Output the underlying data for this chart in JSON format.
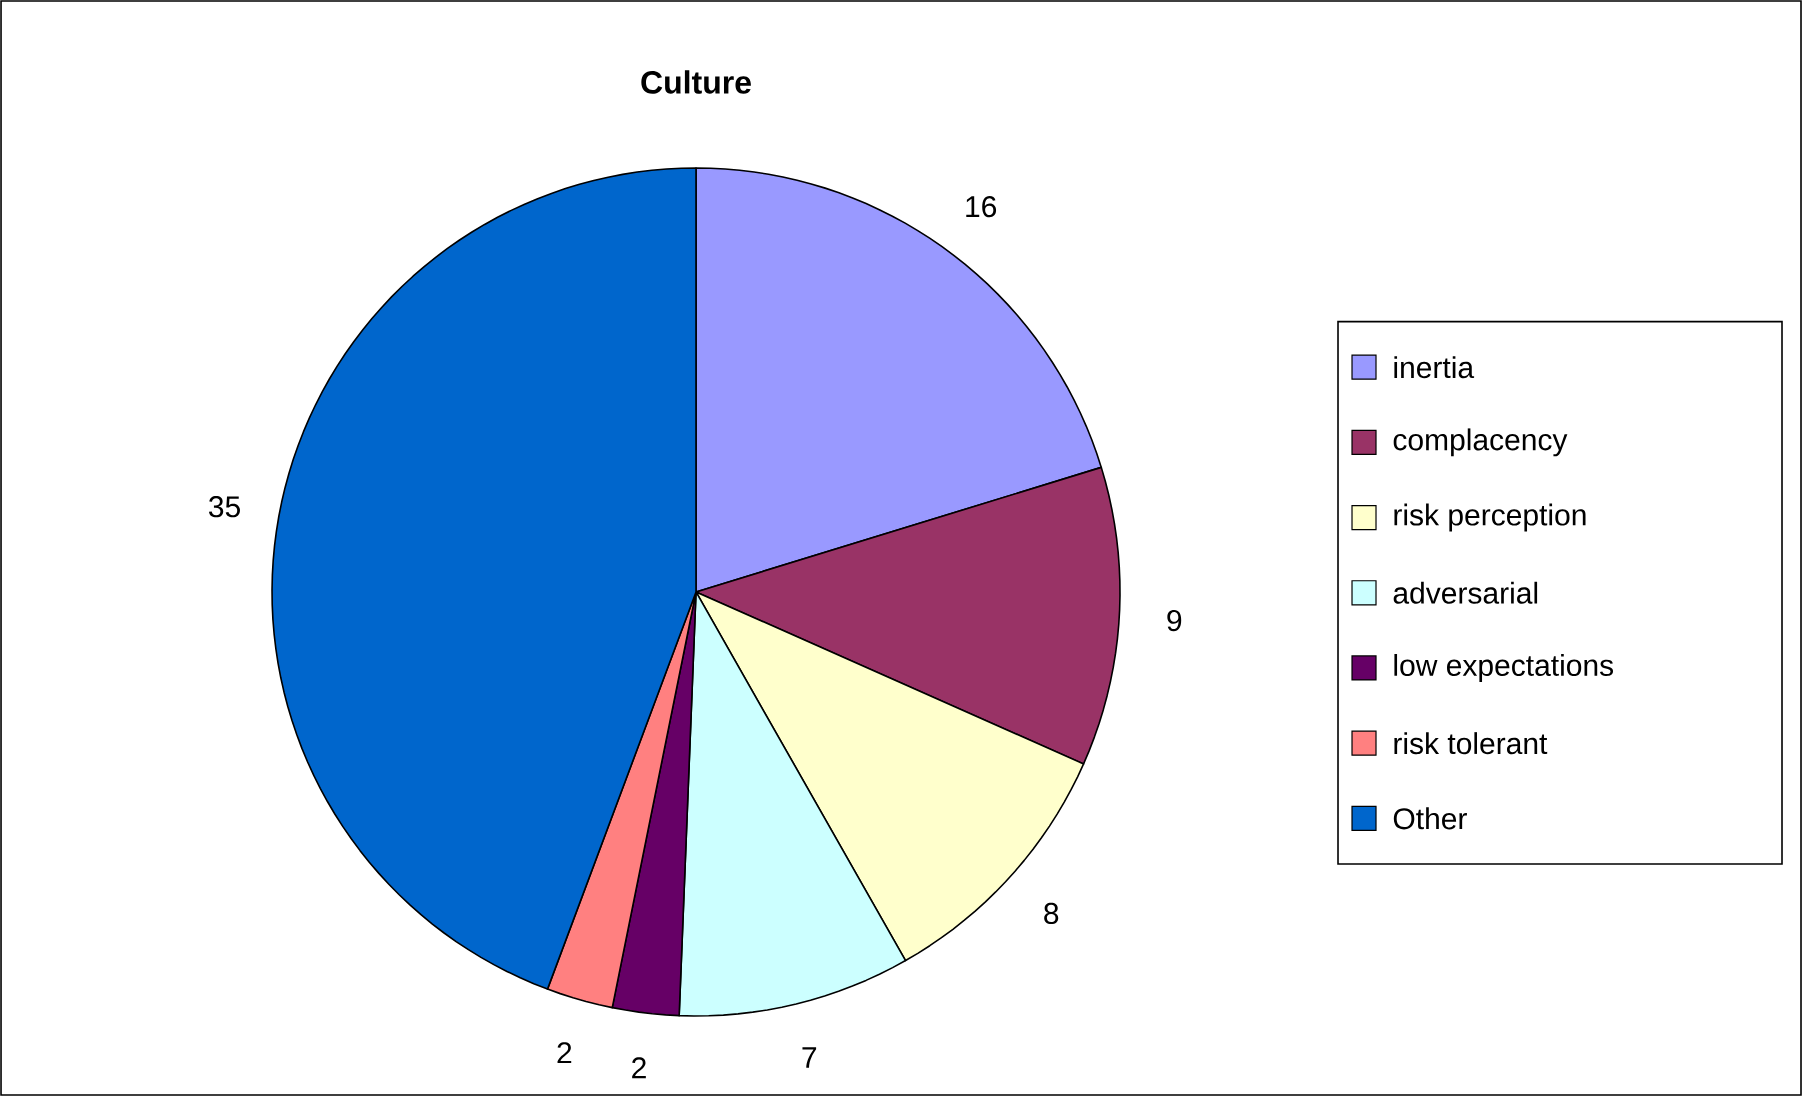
{
  "chart_data": {
    "type": "pie",
    "title": "Culture",
    "categories": [
      "inertia",
      "complacency",
      "risk perception",
      "adversarial",
      "low expectations",
      "risk tolerant",
      "Other"
    ],
    "values": [
      16,
      9,
      8,
      7,
      2,
      2,
      35
    ],
    "colors": [
      "#9999ff",
      "#993366",
      "#ffffcc",
      "#ccffff",
      "#660066",
      "#ff8080",
      "#0066cc"
    ],
    "data_labels": true,
    "legend": "right"
  }
}
